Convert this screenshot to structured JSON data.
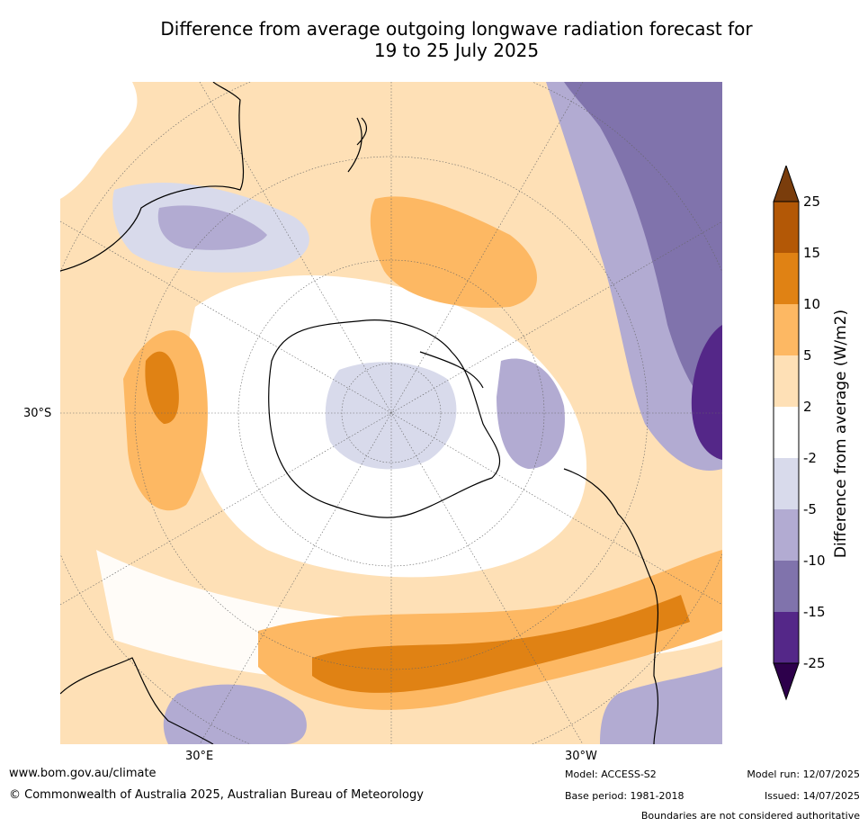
{
  "title_line1": "Difference from average outgoing longwave radiation forecast for",
  "title_line2": "19 to 25 July 2025",
  "map_labels": {
    "lat": "30°S",
    "lon_left": "30°E",
    "lon_right": "30°W"
  },
  "colorbar": {
    "label": "Difference from average (W/m2)",
    "ticks": [
      "25",
      "15",
      "10",
      "5",
      "2",
      "-2",
      "-5",
      "-10",
      "-15",
      "-25"
    ],
    "colors": {
      "above_25": "#7a3d0c",
      "15_25": "#b35806",
      "10_15": "#e08214",
      "5_10": "#fdb863",
      "2_5": "#fee0b6",
      "neutral": "#ffffff",
      "m5_m2": "#d8daeb",
      "m10_m5": "#b2abd2",
      "m15_m10": "#8073ac",
      "m25_m15": "#542788",
      "below_m25": "#2d004b"
    }
  },
  "footer": {
    "url": "www.bom.gov.au/climate",
    "copyright": "© Commonwealth of Australia 2025, Australian Bureau of Meteorology",
    "model": "Model: ACCESS-S2",
    "base_period": "Base period: 1981-2018",
    "model_run": "Model run: 12/07/2025",
    "issued": "Issued: 14/07/2025",
    "boundaries": "Boundaries are not considered authoritative"
  }
}
